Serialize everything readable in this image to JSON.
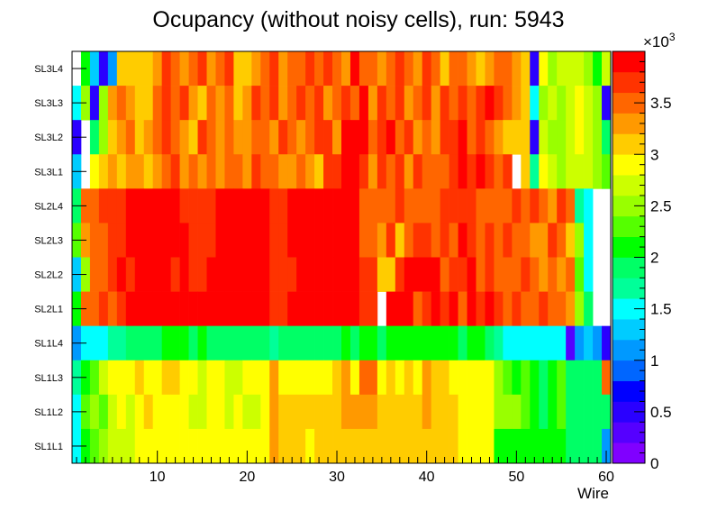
{
  "chart_data": {
    "type": "heatmap",
    "title": "Ocupancy (without noisy cells), run: 5943",
    "xlabel": "Wire",
    "ylabel": "",
    "xlim": [
      0.5,
      60.5
    ],
    "x_ticks": [
      10,
      20,
      30,
      40,
      50,
      60
    ],
    "rows": [
      "SL3L4",
      "SL3L3",
      "SL3L2",
      "SL3L1",
      "SL2L4",
      "SL2L3",
      "SL2L2",
      "SL2L1",
      "SL1L4",
      "SL1L3",
      "SL1L2",
      "SL1L1"
    ],
    "zlim": [
      0,
      4000
    ],
    "z_ticks": [
      "0",
      "0.5",
      "1",
      "1.5",
      "2",
      "2.5",
      "3",
      "3.5"
    ],
    "z_multiplier": "×10",
    "z_multiplier_exp": "3",
    "palette": [
      "#8000ff",
      "#5500ff",
      "#2a00ff",
      "#0000ff",
      "#0066ff",
      "#0099ff",
      "#00ccff",
      "#00ffff",
      "#00ff99",
      "#00ff66",
      "#00ff00",
      "#55ff00",
      "#99ff00",
      "#ccff00",
      "#ffff00",
      "#ffcc00",
      "#ff9900",
      "#ff6600",
      "#ff3300",
      "#ff0000"
    ],
    "values": [
      [
        null,
        2100,
        1300,
        500,
        1100,
        3000,
        3000,
        3000,
        3000,
        3200,
        3600,
        3400,
        3200,
        3400,
        3600,
        3200,
        3400,
        3600,
        3000,
        3000,
        3200,
        3400,
        3600,
        3200,
        3400,
        3400,
        3600,
        3400,
        3600,
        3400,
        3200,
        3800,
        3400,
        3400,
        3200,
        3400,
        3600,
        3400,
        3200,
        3600,
        3400,
        3000,
        3400,
        3400,
        3200,
        3000,
        3200,
        3400,
        3400,
        3200,
        3000,
        500,
        2800,
        2400,
        2600,
        2600,
        2600,
        2400,
        2100,
        2600
      ],
      [
        1400,
        2400,
        400,
        2400,
        3200,
        3400,
        3200,
        3000,
        3000,
        3400,
        3600,
        3400,
        3600,
        3200,
        3000,
        3400,
        3200,
        3400,
        3000,
        3200,
        3600,
        3400,
        3600,
        3200,
        3400,
        3600,
        3400,
        3600,
        3200,
        3400,
        3600,
        3400,
        3800,
        3200,
        3600,
        3400,
        3600,
        3200,
        3400,
        3600,
        3200,
        3600,
        3400,
        3600,
        3400,
        3600,
        3800,
        3600,
        3400,
        3200,
        3000,
        1400,
        2400,
        2600,
        2400,
        2600,
        2800,
        2600,
        2400,
        400
      ],
      [
        400,
        null,
        1800,
        2400,
        3000,
        3200,
        3400,
        3000,
        3200,
        3400,
        3600,
        3400,
        3200,
        3000,
        3600,
        3400,
        3200,
        3400,
        3200,
        3200,
        3400,
        3400,
        3200,
        3600,
        3400,
        3200,
        3400,
        3600,
        3600,
        3200,
        3800,
        3800,
        3800,
        3400,
        3600,
        3800,
        3400,
        3600,
        3200,
        3400,
        3200,
        3600,
        3600,
        3800,
        3400,
        3600,
        3400,
        3200,
        3000,
        3000,
        3000,
        500,
        2600,
        2400,
        2400,
        2600,
        2800,
        2600,
        2400,
        1800
      ],
      [
        1300,
        null,
        2800,
        3000,
        3200,
        3000,
        3200,
        3200,
        3000,
        3200,
        3400,
        3600,
        3200,
        3400,
        3200,
        3400,
        3200,
        3400,
        3400,
        3200,
        3600,
        3400,
        3400,
        3200,
        3200,
        3400,
        3200,
        3000,
        3600,
        3600,
        3800,
        3800,
        3600,
        3200,
        3600,
        3400,
        3600,
        3200,
        3600,
        3400,
        3400,
        3400,
        3600,
        3800,
        3600,
        3800,
        3600,
        3400,
        3600,
        null,
        3000,
        1600,
        2800,
        2600,
        2400,
        2600,
        2600,
        2600,
        2400,
        2200
      ],
      [
        1900,
        3400,
        3400,
        3600,
        3600,
        3600,
        3800,
        3800,
        3800,
        3800,
        3800,
        3800,
        3600,
        3600,
        3600,
        3600,
        3800,
        3800,
        3800,
        3800,
        3800,
        3800,
        3600,
        3600,
        3800,
        3800,
        3800,
        3800,
        3800,
        3800,
        3800,
        3800,
        3400,
        3400,
        3400,
        3400,
        3600,
        3400,
        3400,
        3400,
        3400,
        3600,
        3600,
        3600,
        3600,
        3400,
        3400,
        3400,
        3400,
        3600,
        3400,
        3600,
        3400,
        3200,
        3600,
        3400,
        1600,
        1400,
        null,
        null
      ],
      [
        2200,
        3200,
        3400,
        3400,
        3600,
        3600,
        3800,
        3800,
        3800,
        3800,
        3800,
        3800,
        3800,
        3600,
        3600,
        3600,
        3800,
        3800,
        3800,
        3800,
        3800,
        3800,
        3600,
        3600,
        3800,
        3800,
        3800,
        3800,
        3800,
        3800,
        3800,
        3800,
        3400,
        3400,
        3200,
        3600,
        3000,
        3400,
        3600,
        3600,
        3400,
        3600,
        3400,
        3800,
        3600,
        3400,
        3600,
        3400,
        3600,
        3400,
        3400,
        3200,
        3200,
        3600,
        3400,
        3000,
        2400,
        1400,
        null,
        null
      ],
      [
        1200,
        2400,
        3400,
        3400,
        3600,
        3800,
        3600,
        3800,
        3800,
        3800,
        3800,
        3600,
        3800,
        3600,
        3600,
        3800,
        3800,
        3800,
        3800,
        3800,
        3800,
        3800,
        3600,
        3600,
        3600,
        3800,
        3800,
        3800,
        3800,
        3800,
        3800,
        3800,
        3600,
        3600,
        3000,
        3000,
        3600,
        3800,
        3800,
        3800,
        3800,
        3400,
        3600,
        3600,
        3800,
        3400,
        3600,
        3400,
        3400,
        3400,
        3600,
        3400,
        3200,
        3400,
        3200,
        3400,
        2200,
        1400,
        null,
        null
      ],
      [
        2000,
        3400,
        3400,
        3600,
        3400,
        3600,
        3800,
        3800,
        3800,
        3800,
        3800,
        3800,
        3800,
        3800,
        3800,
        3800,
        3800,
        3800,
        3800,
        3800,
        3800,
        3800,
        3600,
        3600,
        3800,
        3800,
        3800,
        3800,
        3800,
        3800,
        3800,
        3800,
        3600,
        3600,
        null,
        3800,
        3800,
        3800,
        3400,
        3600,
        3800,
        3600,
        3800,
        3400,
        3800,
        3600,
        3800,
        3600,
        3400,
        3600,
        3400,
        3400,
        3600,
        3400,
        3400,
        3200,
        2400,
        1800,
        null,
        null
      ],
      [
        1000,
        1500,
        1500,
        1500,
        1600,
        1700,
        1800,
        1900,
        1800,
        1900,
        2000,
        2100,
        2100,
        1900,
        2000,
        1900,
        1900,
        1900,
        1900,
        1900,
        1900,
        1900,
        1700,
        1900,
        1800,
        1900,
        1900,
        1900,
        1800,
        1900,
        2000,
        1900,
        2000,
        2100,
        1900,
        2000,
        2000,
        2000,
        2000,
        2000,
        2000,
        2000,
        2000,
        1900,
        2000,
        2000,
        1900,
        1700,
        1500,
        1500,
        1500,
        1500,
        1500,
        1500,
        1500,
        300,
        1000,
        1200,
        1000,
        500
      ],
      [
        1600,
        2100,
        2300,
        2600,
        2800,
        2800,
        2800,
        3000,
        2800,
        2800,
        3000,
        3000,
        2800,
        2800,
        2600,
        2800,
        2800,
        2600,
        2600,
        2800,
        2800,
        2800,
        3200,
        2800,
        2800,
        2800,
        2800,
        2800,
        2800,
        3000,
        3200,
        2800,
        3400,
        3400,
        2800,
        3000,
        2800,
        3000,
        2800,
        3200,
        3000,
        3000,
        2800,
        2800,
        2800,
        2800,
        2800,
        2400,
        2200,
        2000,
        2200,
        2000,
        1800,
        2000,
        2200,
        1800,
        1800,
        1800,
        1800,
        3400
      ],
      [
        1400,
        2200,
        2400,
        2200,
        2600,
        2800,
        2600,
        2800,
        3000,
        2800,
        2800,
        2800,
        2800,
        2600,
        2600,
        2800,
        2800,
        2600,
        2800,
        2600,
        2600,
        2800,
        3200,
        3000,
        3000,
        3000,
        3000,
        3000,
        3000,
        3000,
        3200,
        3200,
        3200,
        3200,
        3000,
        3000,
        3000,
        3000,
        3000,
        3200,
        3000,
        3000,
        3000,
        2800,
        2800,
        2800,
        2800,
        2400,
        2400,
        2400,
        2200,
        2000,
        1800,
        2000,
        2200,
        1800,
        1800,
        1800,
        1800,
        1800
      ],
      [
        1500,
        2100,
        2200,
        2500,
        2600,
        2700,
        2700,
        2800,
        2800,
        2800,
        2800,
        2900,
        2800,
        2800,
        2900,
        2800,
        2800,
        2800,
        2800,
        2800,
        2800,
        2900,
        3200,
        3000,
        3000,
        3000,
        2900,
        3000,
        3000,
        3100,
        3100,
        3100,
        3000,
        3000,
        3100,
        3000,
        3000,
        3000,
        3000,
        3100,
        3000,
        3000,
        3000,
        2900,
        2900,
        2900,
        2900,
        2100,
        2100,
        2100,
        2000,
        2000,
        2000,
        2000,
        2000,
        1900,
        1800,
        1800,
        1800,
        1000
      ]
    ]
  }
}
